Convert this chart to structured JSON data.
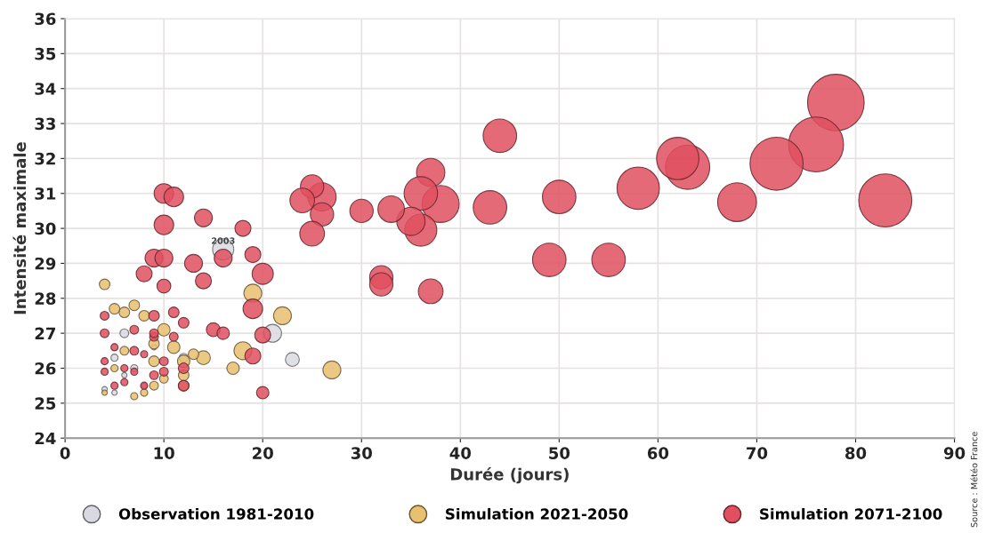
{
  "chart_data": {
    "type": "bubble",
    "xlabel": "Durée (jours)",
    "ylabel": "Intensité maximale",
    "xlim": [
      0,
      90
    ],
    "xticks": [
      0,
      10,
      20,
      30,
      40,
      50,
      60,
      70,
      80,
      90
    ],
    "ylim": [
      24,
      36
    ],
    "yticks": [
      24,
      25,
      26,
      27,
      28,
      29,
      30,
      31,
      32,
      33,
      34,
      35,
      36
    ],
    "grid": true,
    "legend": "bottom",
    "annotations": [
      {
        "text": "2003",
        "x": 16,
        "y": 29.4
      },
      "Source : Météo France"
    ],
    "series": [
      {
        "name": "Observation 1981-2010",
        "color": "#d9d9e2",
        "x": [
          16,
          21,
          23,
          6,
          5,
          12,
          7,
          4,
          5,
          8,
          9,
          6
        ],
        "values": [
          29.4,
          27.0,
          26.25,
          27.0,
          26.3,
          26.3,
          26.0,
          25.4,
          25.3,
          25.5,
          26.6,
          25.8
        ],
        "sizes": [
          0.14,
          0.1,
          0.06,
          0.024,
          0.016,
          0.024,
          0.016,
          0.009,
          0.009,
          0.009,
          0.009,
          0.009
        ]
      },
      {
        "name": "Simulation 2021-2050",
        "color": "#e8c070",
        "x": [
          4,
          27,
          22,
          19,
          18,
          17,
          14,
          13,
          12,
          11,
          10,
          9,
          8,
          7,
          6,
          5,
          6,
          9,
          10,
          12,
          7,
          4,
          5,
          8,
          12,
          9
        ],
        "values": [
          28.4,
          25.95,
          27.5,
          28.15,
          26.5,
          26.0,
          26.3,
          26.4,
          26.2,
          26.6,
          27.1,
          26.7,
          27.5,
          27.8,
          27.6,
          27.7,
          26.5,
          26.2,
          25.7,
          25.5,
          25.2,
          25.3,
          26.0,
          25.3,
          25.8,
          25.5
        ],
        "sizes": [
          0.035,
          0.1,
          0.1,
          0.1,
          0.1,
          0.048,
          0.06,
          0.035,
          0.048,
          0.048,
          0.048,
          0.035,
          0.035,
          0.035,
          0.035,
          0.035,
          0.024,
          0.035,
          0.024,
          0.035,
          0.016,
          0.009,
          0.016,
          0.016,
          0.035,
          0.024
        ]
      },
      {
        "name": "Simulation 2071-2100",
        "color": "#e0505f",
        "x": [
          83,
          78,
          76,
          72,
          68,
          63,
          62,
          58,
          55,
          50,
          49,
          44,
          43,
          38,
          37,
          36,
          36,
          35,
          33,
          32,
          32,
          37,
          30,
          26,
          26,
          25,
          24,
          25,
          10,
          11,
          10,
          14,
          18,
          16,
          19,
          20,
          13,
          9,
          10,
          8,
          14,
          10,
          19,
          11,
          12,
          9,
          7,
          4,
          4,
          15,
          16,
          20,
          19,
          20,
          4,
          5,
          5,
          6,
          6,
          7,
          8,
          9,
          9,
          10,
          10,
          11,
          12,
          12,
          9,
          7,
          4,
          8
        ],
        "values": [
          30.8,
          33.6,
          32.4,
          31.85,
          30.75,
          31.75,
          32.0,
          31.15,
          29.1,
          30.9,
          29.1,
          32.65,
          30.6,
          30.7,
          31.6,
          31.0,
          29.95,
          30.2,
          30.55,
          28.6,
          28.4,
          28.2,
          30.5,
          30.9,
          30.4,
          31.2,
          30.8,
          29.85,
          31.0,
          30.9,
          30.1,
          30.3,
          30.0,
          29.15,
          29.25,
          28.7,
          29.0,
          29.15,
          29.15,
          28.7,
          28.5,
          28.35,
          27.7,
          27.6,
          27.3,
          27.5,
          27.1,
          27.5,
          27.0,
          27.1,
          27.0,
          26.95,
          26.35,
          25.3,
          26.2,
          25.5,
          26.6,
          26.0,
          25.6,
          25.9,
          26.4,
          26.9,
          25.8,
          26.2,
          25.9,
          26.9,
          25.5,
          26.0,
          27.0,
          26.5,
          25.9,
          25.5
        ],
        "sizes": [
          0.88,
          1,
          0.94,
          0.88,
          0.47,
          0.61,
          0.56,
          0.56,
          0.35,
          0.35,
          0.35,
          0.35,
          0.35,
          0.43,
          0.25,
          0.35,
          0.32,
          0.25,
          0.22,
          0.17,
          0.17,
          0.19,
          0.17,
          0.25,
          0.17,
          0.17,
          0.19,
          0.19,
          0.12,
          0.12,
          0.12,
          0.1,
          0.08,
          0.1,
          0.08,
          0.14,
          0.1,
          0.1,
          0.1,
          0.08,
          0.08,
          0.06,
          0.12,
          0.035,
          0.035,
          0.035,
          0.024,
          0.024,
          0.024,
          0.06,
          0.048,
          0.08,
          0.08,
          0.048,
          0.016,
          0.016,
          0.016,
          0.016,
          0.016,
          0.016,
          0.016,
          0.024,
          0.024,
          0.024,
          0.024,
          0.024,
          0.035,
          0.035,
          0.024,
          0.024,
          0.016,
          0.016
        ]
      }
    ]
  }
}
